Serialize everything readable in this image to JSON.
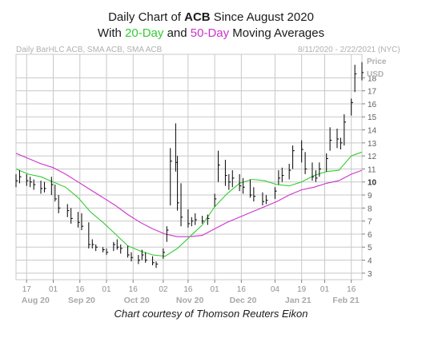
{
  "title": {
    "line1_prefix": "Daily Chart of ",
    "ticker": "ACB",
    "line1_suffix": " Since August 2020",
    "line2_prefix": "With ",
    "ma20": "20-Day",
    "line2_mid": " and ",
    "ma50": "50-Day",
    "line2_suffix": " Moving Averages"
  },
  "subtitle_left": "Daily BarHLC ACB, SMA ACB, SMA ACB",
  "subtitle_right": "8/11/2020 - 2/22/2021 (NYC)",
  "axis_title_line1": "Price",
  "axis_title_line2": "USD",
  "courtesy": "Chart courtesy of Thomson Reuters Eikon",
  "colors": {
    "grid": "#c8c8c8",
    "bars": "#000000",
    "sma20": "#33cc33",
    "sma50": "#cc33cc",
    "muted": "#b0b0b0"
  },
  "chart_data": {
    "type": "line",
    "ylim": [
      2.5,
      19.8
    ],
    "y_ticks": [
      3,
      4,
      5,
      6,
      7,
      8,
      9,
      10,
      11,
      12,
      13,
      14,
      15,
      16,
      17,
      18
    ],
    "y_tick_labels": [
      "3",
      "4",
      "5",
      "6",
      "7",
      "8",
      "9",
      "10",
      "11",
      "12",
      "13",
      "14",
      "15",
      "16",
      "17",
      "18"
    ],
    "x_day_ticks": [
      "17",
      "01",
      "16",
      "01",
      "16",
      "02",
      "16",
      "01",
      "16",
      "04",
      "19",
      "01",
      "16"
    ],
    "x_month_labels": [
      "Aug 20",
      "Sep 20",
      "Oct 20",
      "Nov 20",
      "Dec 20",
      "Jan 21",
      "Feb 21"
    ],
    "series": [
      {
        "name": "20-Day",
        "x": [
          "2020-08-11",
          "2020-08-18",
          "2020-08-25",
          "2020-09-01",
          "2020-09-08",
          "2020-09-15",
          "2020-09-22",
          "2020-09-29",
          "2020-10-06",
          "2020-10-13",
          "2020-10-20",
          "2020-10-27",
          "2020-11-03",
          "2020-11-10",
          "2020-11-17",
          "2020-11-24",
          "2020-12-01",
          "2020-12-08",
          "2020-12-15",
          "2020-12-22",
          "2020-12-29",
          "2021-01-05",
          "2021-01-12",
          "2021-01-19",
          "2021-01-26",
          "2021-02-02",
          "2021-02-09",
          "2021-02-16",
          "2021-02-22"
        ],
        "values": [
          11.0,
          10.6,
          10.4,
          10.0,
          9.6,
          8.8,
          7.7,
          6.9,
          6.0,
          5.1,
          4.7,
          4.4,
          4.3,
          4.9,
          5.8,
          6.7,
          8.1,
          9.1,
          9.9,
          10.2,
          10.1,
          9.8,
          9.7,
          10.0,
          10.5,
          10.8,
          10.9,
          12.0,
          12.3
        ]
      },
      {
        "name": "50-Day",
        "x": [
          "2020-08-11",
          "2020-08-18",
          "2020-08-25",
          "2020-09-01",
          "2020-09-08",
          "2020-09-15",
          "2020-09-22",
          "2020-09-29",
          "2020-10-06",
          "2020-10-13",
          "2020-10-20",
          "2020-10-27",
          "2020-11-03",
          "2020-11-10",
          "2020-11-17",
          "2020-11-24",
          "2020-12-01",
          "2020-12-08",
          "2020-12-15",
          "2020-12-22",
          "2020-12-29",
          "2021-01-05",
          "2021-01-12",
          "2021-01-19",
          "2021-01-26",
          "2021-02-02",
          "2021-02-09",
          "2021-02-16",
          "2021-02-22"
        ],
        "values": [
          12.2,
          11.8,
          11.4,
          11.1,
          10.6,
          10.0,
          9.4,
          8.8,
          8.2,
          7.5,
          6.9,
          6.4,
          6.0,
          5.8,
          5.8,
          5.9,
          6.4,
          6.9,
          7.3,
          7.7,
          8.1,
          8.5,
          9.0,
          9.4,
          9.6,
          9.9,
          10.1,
          10.6,
          10.9
        ]
      }
    ],
    "hlc": {
      "dates": [
        "2020-08-11",
        "2020-08-13",
        "2020-08-17",
        "2020-08-19",
        "2020-08-21",
        "2020-08-25",
        "2020-08-27",
        "2020-08-31",
        "2020-09-02",
        "2020-09-04",
        "2020-09-09",
        "2020-09-11",
        "2020-09-15",
        "2020-09-17",
        "2020-09-21",
        "2020-09-23",
        "2020-09-25",
        "2020-09-29",
        "2020-10-01",
        "2020-10-05",
        "2020-10-07",
        "2020-10-09",
        "2020-10-13",
        "2020-10-15",
        "2020-10-19",
        "2020-10-21",
        "2020-10-23",
        "2020-10-27",
        "2020-10-29",
        "2020-11-02",
        "2020-11-04",
        "2020-11-06",
        "2020-11-09",
        "2020-11-10",
        "2020-11-12",
        "2020-11-16",
        "2020-11-18",
        "2020-11-20",
        "2020-11-24",
        "2020-11-27",
        "2020-12-01",
        "2020-12-03",
        "2020-12-07",
        "2020-12-09",
        "2020-12-11",
        "2020-12-15",
        "2020-12-17",
        "2020-12-21",
        "2020-12-23",
        "2020-12-28",
        "2020-12-30",
        "2021-01-04",
        "2021-01-06",
        "2021-01-08",
        "2021-01-12",
        "2021-01-14",
        "2021-01-19",
        "2021-01-21",
        "2021-01-25",
        "2021-01-27",
        "2021-01-29",
        "2021-02-02",
        "2021-02-04",
        "2021-02-08",
        "2021-02-10",
        "2021-02-12",
        "2021-02-16",
        "2021-02-18",
        "2021-02-22"
      ],
      "high": [
        10.6,
        10.9,
        10.6,
        10.4,
        10.2,
        10.1,
        10.0,
        10.4,
        9.8,
        9.0,
        8.3,
        8.0,
        7.7,
        7.6,
        6.9,
        5.6,
        5.2,
        5.0,
        4.9,
        5.4,
        5.6,
        5.2,
        5.1,
        4.6,
        4.4,
        4.8,
        4.6,
        4.3,
        3.9,
        4.9,
        6.6,
        12.6,
        14.5,
        12.0,
        9.9,
        7.9,
        7.3,
        7.6,
        7.4,
        7.5,
        9.1,
        12.4,
        11.7,
        10.6,
        10.9,
        10.6,
        10.3,
        10.2,
        9.6,
        9.2,
        9.0,
        9.6,
        10.9,
        11.1,
        11.4,
        12.8,
        13.2,
        12.3,
        11.5,
        10.9,
        11.5,
        12.2,
        14.2,
        14.1,
        13.4,
        15.2,
        16.4,
        19.0,
        19.2
      ],
      "low": [
        9.6,
        9.9,
        9.7,
        9.6,
        9.4,
        9.1,
        9.2,
        9.0,
        8.5,
        7.6,
        7.3,
        6.8,
        6.5,
        6.3,
        4.9,
        4.9,
        4.7,
        4.6,
        4.4,
        4.7,
        4.8,
        4.5,
        4.2,
        3.9,
        3.7,
        4.0,
        3.8,
        3.6,
        3.4,
        4.1,
        5.4,
        8.2,
        10.8,
        7.8,
        6.6,
        6.5,
        6.6,
        6.7,
        6.8,
        6.7,
        8.1,
        10.0,
        9.7,
        9.4,
        9.6,
        9.3,
        9.1,
        8.8,
        8.5,
        8.2,
        8.3,
        8.7,
        9.8,
        10.0,
        10.2,
        11.0,
        11.5,
        10.6,
        10.1,
        10.0,
        10.4,
        10.8,
        12.4,
        12.6,
        12.5,
        12.8,
        15.1,
        16.9,
        17.8
      ],
      "close": [
        10.1,
        10.4,
        10.1,
        10.0,
        9.8,
        9.5,
        9.5,
        9.8,
        8.7,
        8.0,
        7.8,
        7.2,
        6.9,
        6.6,
        5.2,
        5.2,
        5.0,
        4.8,
        4.6,
        5.2,
        5.0,
        4.9,
        4.4,
        4.2,
        4.0,
        4.4,
        4.0,
        3.8,
        3.7,
        4.6,
        6.3,
        11.6,
        11.5,
        8.4,
        7.3,
        6.8,
        7.0,
        7.1,
        7.0,
        7.2,
        8.7,
        11.3,
        10.5,
        10.0,
        10.3,
        9.7,
        9.6,
        9.0,
        8.9,
        8.5,
        8.6,
        9.3,
        10.3,
        10.5,
        10.9,
        12.4,
        12.5,
        11.0,
        10.4,
        10.3,
        11.0,
        11.8,
        13.2,
        13.3,
        13.0,
        14.6,
        16.1,
        18.3,
        18.4
      ]
    }
  }
}
